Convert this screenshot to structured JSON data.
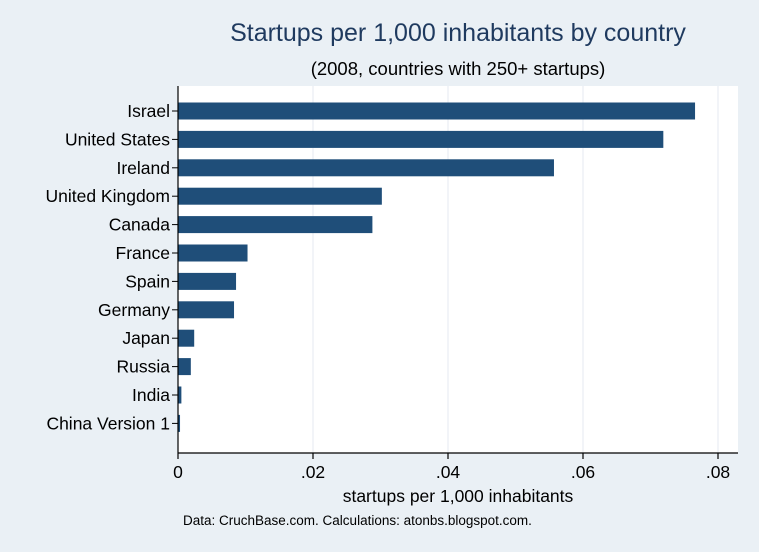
{
  "chart_data": {
    "type": "bar",
    "orientation": "horizontal",
    "title": "Startups per 1,000 inhabitants by country",
    "subtitle": "(2008, countries with 250+ startups)",
    "xlabel": "startups per 1,000 inhabitants",
    "ylabel": "",
    "note": "Data: CruchBase.com. Calculations: atonbs.blogspot.com.",
    "categories": [
      "Israel",
      "United States",
      "Ireland",
      "United Kingdom",
      "Canada",
      "France",
      "Spain",
      "Germany",
      "Japan",
      "Russia",
      "India",
      "China Version 1"
    ],
    "values": [
      0.0766,
      0.0719,
      0.0557,
      0.0302,
      0.0288,
      0.0103,
      0.0086,
      0.0083,
      0.0024,
      0.0019,
      0.0005,
      0.0003
    ],
    "xlim": [
      0,
      0.082
    ],
    "x_ticks": [
      0,
      0.02,
      0.04,
      0.06,
      0.08
    ],
    "x_tick_labels": [
      "0",
      ".02",
      ".04",
      ".06",
      ".08"
    ],
    "grid": true,
    "bar_color": "#1f4e79",
    "background_color": "#eaf0f5",
    "plot_background_color": "#ffffff"
  }
}
